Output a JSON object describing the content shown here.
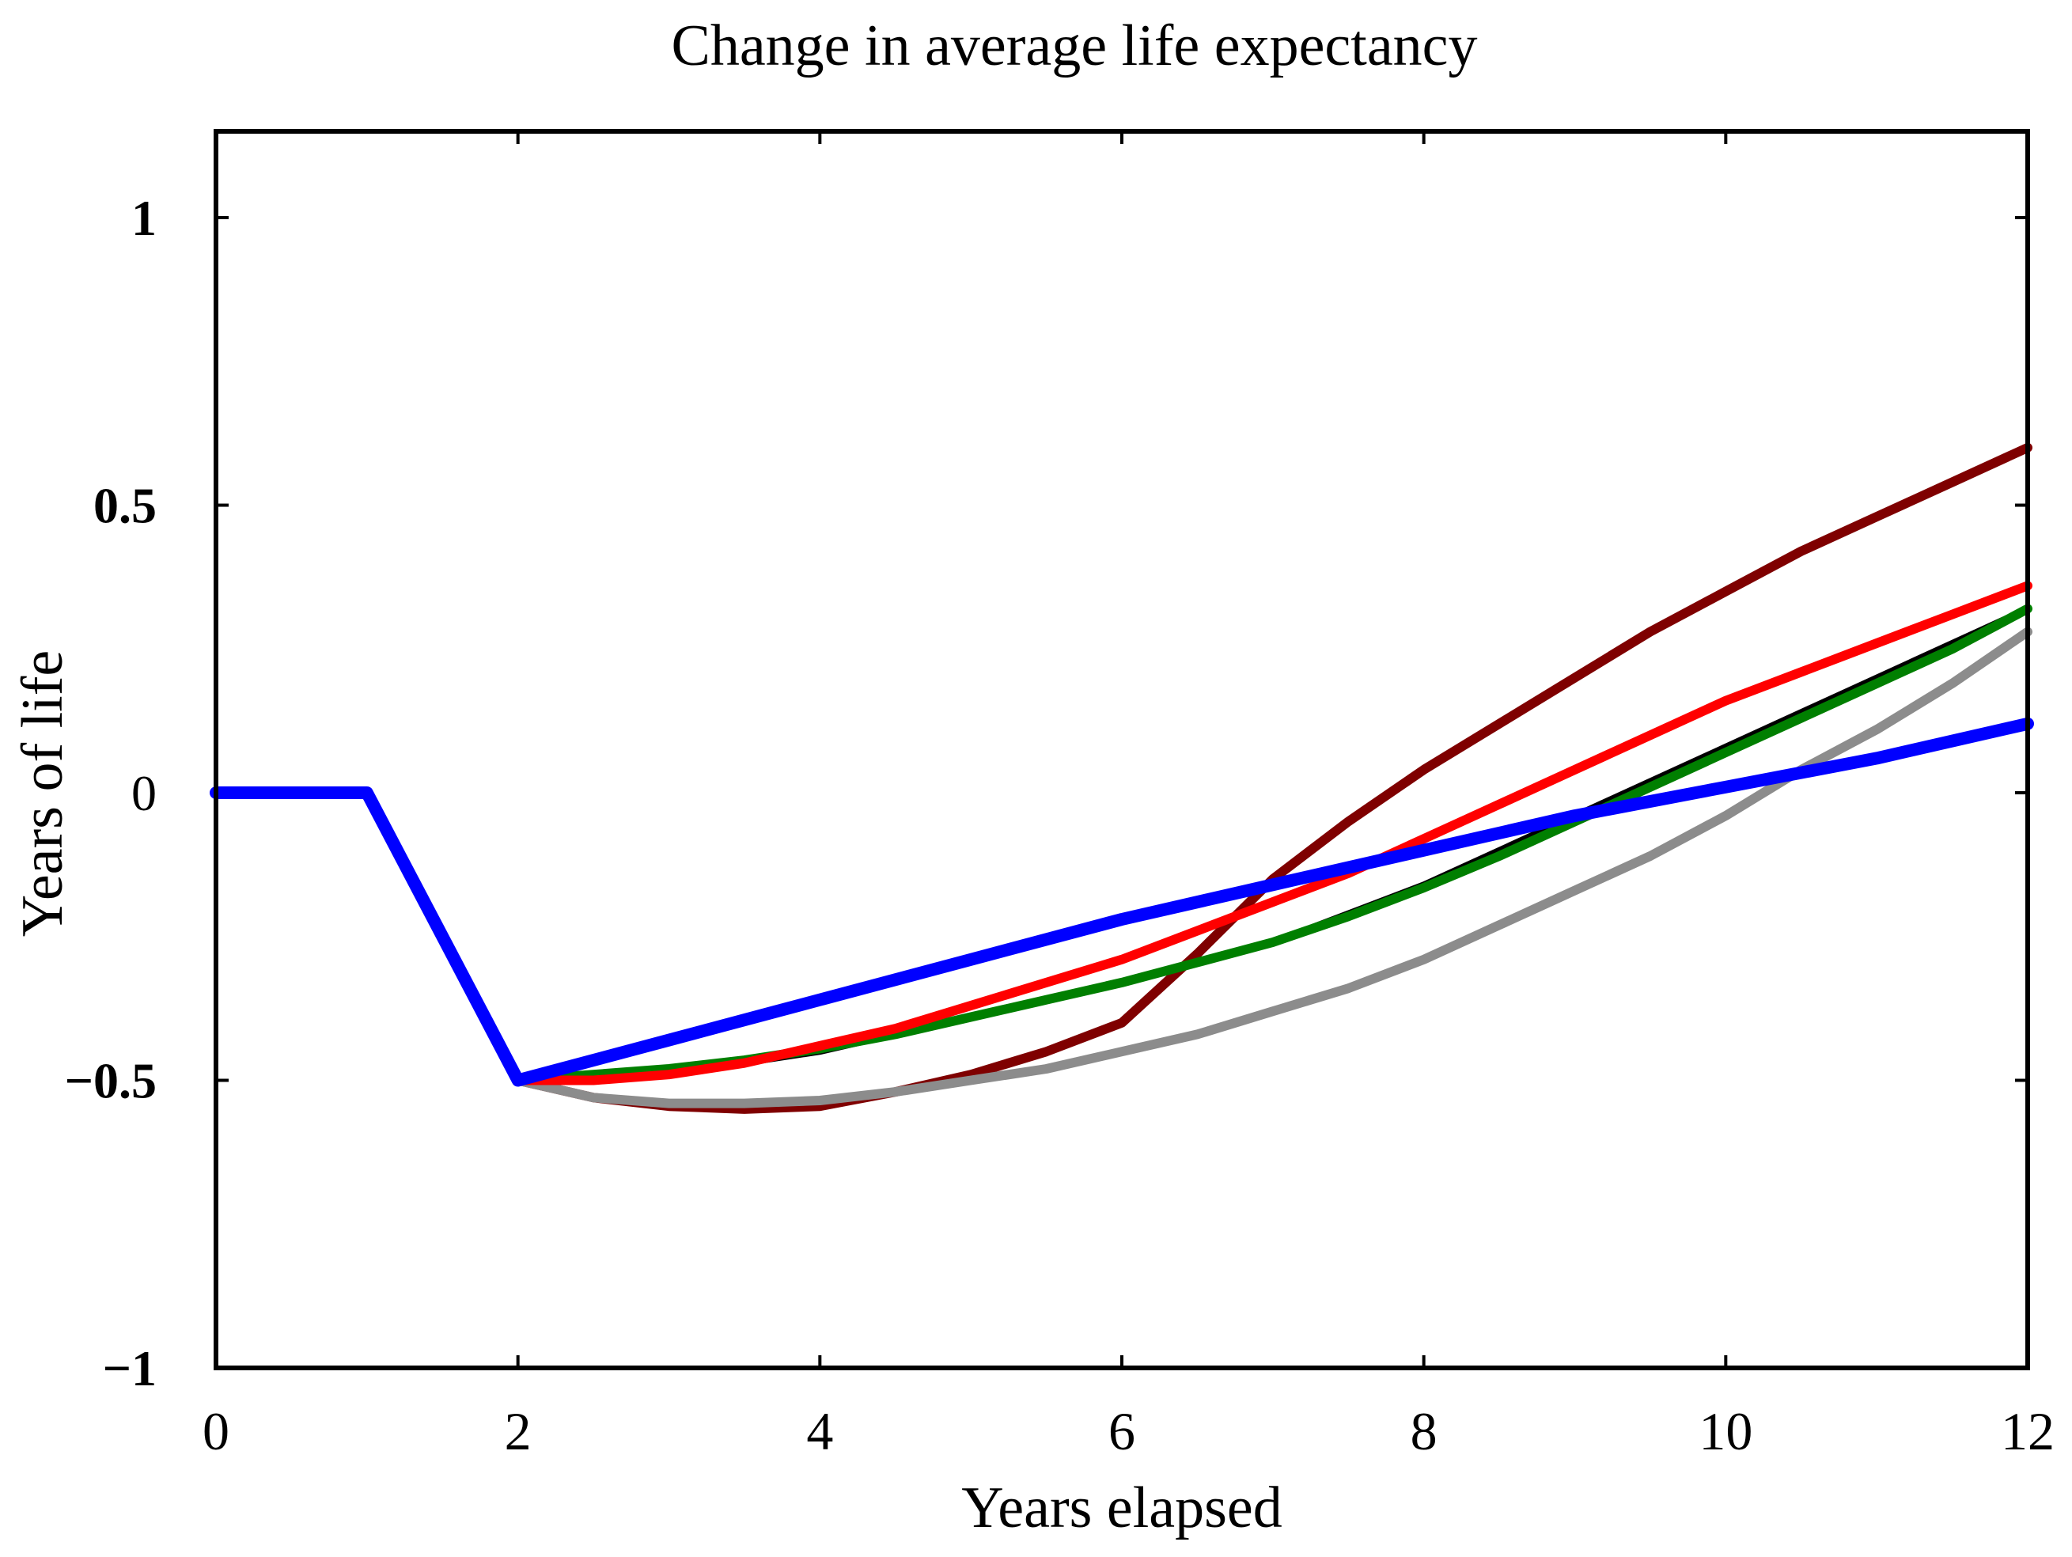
{
  "chart_data": {
    "type": "line",
    "title": "Change in average life expectancy",
    "xlabel": "Years elapsed",
    "ylabel": "Years of life",
    "xlim": [
      0,
      12
    ],
    "ylim": [
      -1,
      1.15
    ],
    "x_ticks": [
      0,
      2,
      4,
      6,
      8,
      10,
      12
    ],
    "x_tick_labels": [
      "0",
      "2",
      "4",
      "6",
      "8",
      "10",
      "12"
    ],
    "y_ticks": [
      1,
      0.5,
      0,
      -0.5,
      -1
    ],
    "y_tick_labels": [
      "1",
      "0.5",
      "0",
      "−0.5",
      "−1"
    ],
    "grid": false,
    "series": [
      {
        "name": "black",
        "color": "#000000",
        "points": [
          [
            2,
            -0.5
          ],
          [
            3,
            -0.49
          ],
          [
            4,
            -0.45
          ],
          [
            5,
            -0.39
          ],
          [
            6,
            -0.33
          ],
          [
            7,
            -0.26
          ],
          [
            8,
            -0.16
          ],
          [
            9,
            -0.04
          ],
          [
            10,
            0.08
          ],
          [
            11,
            0.2
          ],
          [
            12,
            0.32
          ]
        ]
      },
      {
        "name": "dark red",
        "color": "#7f0000",
        "points": [
          [
            2,
            -0.5
          ],
          [
            2.5,
            -0.53
          ],
          [
            3,
            -0.545
          ],
          [
            3.5,
            -0.55
          ],
          [
            4,
            -0.545
          ],
          [
            4.5,
            -0.52
          ],
          [
            5,
            -0.49
          ],
          [
            5.5,
            -0.45
          ],
          [
            6,
            -0.4
          ],
          [
            6.5,
            -0.28
          ],
          [
            7,
            -0.15
          ],
          [
            7.5,
            -0.05
          ],
          [
            8,
            0.04
          ],
          [
            8.5,
            0.12
          ],
          [
            9,
            0.2
          ],
          [
            9.5,
            0.28
          ],
          [
            10,
            0.35
          ],
          [
            10.5,
            0.42
          ],
          [
            11,
            0.48
          ],
          [
            11.5,
            0.54
          ],
          [
            12,
            0.6
          ]
        ]
      },
      {
        "name": "gray",
        "color": "#8c8c8c",
        "points": [
          [
            2,
            -0.5
          ],
          [
            2.5,
            -0.53
          ],
          [
            3,
            -0.54
          ],
          [
            3.5,
            -0.54
          ],
          [
            4,
            -0.535
          ],
          [
            4.5,
            -0.52
          ],
          [
            5,
            -0.5
          ],
          [
            5.5,
            -0.48
          ],
          [
            6,
            -0.45
          ],
          [
            6.5,
            -0.42
          ],
          [
            7,
            -0.38
          ],
          [
            7.5,
            -0.34
          ],
          [
            8,
            -0.29
          ],
          [
            8.5,
            -0.23
          ],
          [
            9,
            -0.17
          ],
          [
            9.5,
            -0.11
          ],
          [
            10,
            -0.04
          ],
          [
            10.5,
            0.04
          ],
          [
            11,
            0.11
          ],
          [
            11.5,
            0.19
          ],
          [
            12,
            0.28
          ]
        ]
      },
      {
        "name": "green",
        "color": "#007f00",
        "points": [
          [
            2,
            -0.5
          ],
          [
            2.5,
            -0.49
          ],
          [
            3,
            -0.48
          ],
          [
            3.5,
            -0.465
          ],
          [
            4,
            -0.445
          ],
          [
            4.5,
            -0.42
          ],
          [
            5,
            -0.39
          ],
          [
            5.5,
            -0.36
          ],
          [
            6,
            -0.33
          ],
          [
            6.5,
            -0.295
          ],
          [
            7,
            -0.26
          ],
          [
            7.5,
            -0.215
          ],
          [
            8,
            -0.165
          ],
          [
            8.5,
            -0.11
          ],
          [
            9,
            -0.05
          ],
          [
            9.5,
            0.01
          ],
          [
            10,
            0.07
          ],
          [
            10.5,
            0.13
          ],
          [
            11,
            0.19
          ],
          [
            11.5,
            0.25
          ],
          [
            12,
            0.32
          ]
        ]
      },
      {
        "name": "red",
        "color": "#ff0000",
        "points": [
          [
            2,
            -0.5
          ],
          [
            2.5,
            -0.5
          ],
          [
            3,
            -0.49
          ],
          [
            3.5,
            -0.47
          ],
          [
            4,
            -0.44
          ],
          [
            4.5,
            -0.41
          ],
          [
            5,
            -0.37
          ],
          [
            5.5,
            -0.33
          ],
          [
            6,
            -0.29
          ],
          [
            6.5,
            -0.24
          ],
          [
            7,
            -0.19
          ],
          [
            7.5,
            -0.14
          ],
          [
            8,
            -0.08
          ],
          [
            8.5,
            -0.02
          ],
          [
            9,
            0.04
          ],
          [
            9.5,
            0.1
          ],
          [
            10,
            0.16
          ],
          [
            10.5,
            0.21
          ],
          [
            11,
            0.26
          ],
          [
            11.5,
            0.31
          ],
          [
            12,
            0.36
          ]
        ]
      },
      {
        "name": "blue",
        "color": "#0000ff",
        "points": [
          [
            0,
            0
          ],
          [
            1,
            0
          ],
          [
            2,
            -0.5
          ],
          [
            3,
            -0.43
          ],
          [
            4,
            -0.36
          ],
          [
            5,
            -0.29
          ],
          [
            6,
            -0.22
          ],
          [
            7,
            -0.16
          ],
          [
            8,
            -0.1
          ],
          [
            9,
            -0.04
          ],
          [
            10,
            0.01
          ],
          [
            11,
            0.06
          ],
          [
            12,
            0.12
          ]
        ]
      }
    ]
  }
}
